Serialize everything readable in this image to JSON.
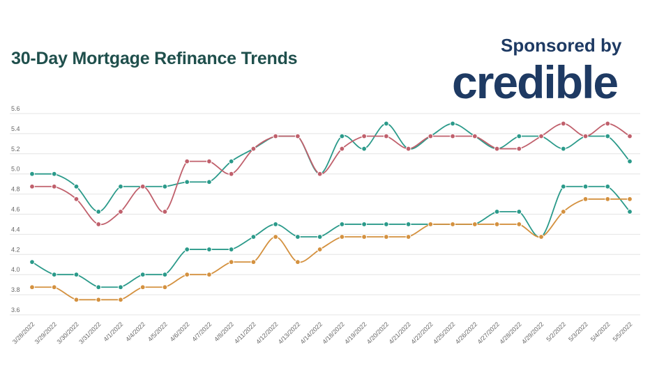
{
  "header": {
    "sponsor_label": "Sponsored by",
    "brand_logo_text": "credible"
  },
  "chart_data": {
    "type": "line",
    "title": "30-Day Mortgage Refinance Trends",
    "xlabel": "",
    "ylabel": "",
    "ylim": [
      3.6,
      5.6
    ],
    "yticks": [
      "3.6",
      "3.8",
      "4.0",
      "4.2",
      "4.4",
      "4.6",
      "4.8",
      "5.0",
      "5.2",
      "5.4",
      "5.6"
    ],
    "grid": true,
    "legend": "none",
    "categories": [
      "3/28/2022",
      "3/29/2022",
      "3/30/2022",
      "3/31/2022",
      "4/1/2022",
      "4/4/2022",
      "4/5/2022",
      "4/6/2022",
      "4/7/2022",
      "4/8/2022",
      "4/11/2022",
      "4/12/2022",
      "4/13/2022",
      "4/14/2022",
      "4/18/2022",
      "4/19/2022",
      "4/20/2022",
      "4/21/2022",
      "4/22/2022",
      "4/25/2022",
      "4/26/2022",
      "4/27/2022",
      "4/28/2022",
      "4/29/2022",
      "5/2/2022",
      "5/3/2022",
      "5/4/2022",
      "5/5/2022"
    ],
    "series": [
      {
        "color": "#2b9a8a",
        "values": [
          5.0,
          5.0,
          4.875,
          4.625,
          4.875,
          4.875,
          4.875,
          4.92,
          4.92,
          5.125,
          5.25,
          5.375,
          5.375,
          5.0,
          5.375,
          5.25,
          5.5,
          5.25,
          5.375,
          5.5,
          5.375,
          5.25,
          5.375,
          5.375,
          5.25,
          5.375,
          5.375,
          5.125
        ]
      },
      {
        "color": "#c0606c",
        "values": [
          4.875,
          4.875,
          4.75,
          4.5,
          4.625,
          4.875,
          4.625,
          5.125,
          5.125,
          5.0,
          5.25,
          5.375,
          5.375,
          5.0,
          5.25,
          5.375,
          5.375,
          5.25,
          5.375,
          5.375,
          5.375,
          5.25,
          5.25,
          5.375,
          5.5,
          5.375,
          5.5,
          5.375
        ]
      },
      {
        "color": "#2b9a8a",
        "values": [
          4.125,
          4.0,
          4.0,
          3.875,
          3.875,
          4.0,
          4.0,
          4.25,
          4.25,
          4.25,
          4.375,
          4.5,
          4.375,
          4.375,
          4.5,
          4.5,
          4.5,
          4.5,
          4.5,
          4.5,
          4.5,
          4.625,
          4.625,
          4.375,
          4.875,
          4.875,
          4.875,
          4.625
        ]
      },
      {
        "color": "#d4913f",
        "values": [
          3.875,
          3.875,
          3.75,
          3.75,
          3.75,
          3.875,
          3.875,
          4.0,
          4.0,
          4.125,
          4.125,
          4.375,
          4.125,
          4.25,
          4.375,
          4.375,
          4.375,
          4.375,
          4.5,
          4.5,
          4.5,
          4.5,
          4.5,
          4.375,
          4.625,
          4.75,
          4.75,
          4.75
        ]
      }
    ]
  }
}
